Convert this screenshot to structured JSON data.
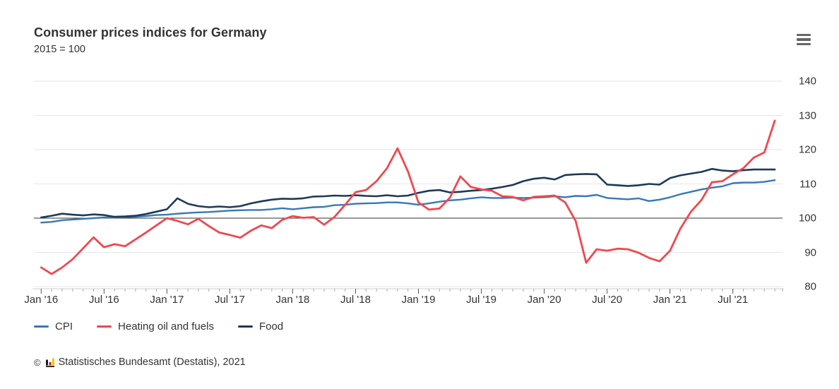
{
  "header": {
    "title": "Consumer prices indices for Germany",
    "subtitle": "2015 = 100"
  },
  "menu": {
    "tooltip": "Chart context menu"
  },
  "footer": {
    "copyright": "©",
    "credit": "Statistisches Bundesamt (Destatis), 2021"
  },
  "chart_data": {
    "type": "line",
    "title": "Consumer prices indices for Germany",
    "subtitle": "2015 = 100",
    "grid": "horizontal",
    "legend_position": "bottom-left",
    "baseline": 100,
    "ylim": [
      80,
      140
    ],
    "y_ticks": [
      80,
      90,
      100,
      110,
      120,
      130,
      140
    ],
    "x_tick_labels": [
      "Jan '16",
      "Jul '16",
      "Jan '17",
      "Jul '17",
      "Jan '18",
      "Jul '18",
      "Jan '19",
      "Jul '19",
      "Jan '20",
      "Jul '20",
      "Jan '21",
      "Jul '21"
    ],
    "x_tick_month_indices": [
      0,
      6,
      12,
      18,
      24,
      30,
      36,
      42,
      48,
      54,
      60,
      66
    ],
    "x": [
      "Jan 2016",
      "Feb 2016",
      "Mar 2016",
      "Apr 2016",
      "May 2016",
      "Jun 2016",
      "Jul 2016",
      "Aug 2016",
      "Sep 2016",
      "Oct 2016",
      "Nov 2016",
      "Dec 2016",
      "Jan 2017",
      "Feb 2017",
      "Mar 2017",
      "Apr 2017",
      "May 2017",
      "Jun 2017",
      "Jul 2017",
      "Aug 2017",
      "Sep 2017",
      "Oct 2017",
      "Nov 2017",
      "Dec 2017",
      "Jan 2018",
      "Feb 2018",
      "Mar 2018",
      "Apr 2018",
      "May 2018",
      "Jun 2018",
      "Jul 2018",
      "Aug 2018",
      "Sep 2018",
      "Oct 2018",
      "Nov 2018",
      "Dec 2018",
      "Jan 2019",
      "Feb 2019",
      "Mar 2019",
      "Apr 2019",
      "May 2019",
      "Jun 2019",
      "Jul 2019",
      "Aug 2019",
      "Sep 2019",
      "Oct 2019",
      "Nov 2019",
      "Dec 2019",
      "Jan 2020",
      "Feb 2020",
      "Mar 2020",
      "Apr 2020",
      "May 2020",
      "Jun 2020",
      "Jul 2020",
      "Aug 2020",
      "Sep 2020",
      "Oct 2020",
      "Nov 2020",
      "Dec 2020",
      "Jan 2021",
      "Feb 2021",
      "Mar 2021",
      "Apr 2021",
      "May 2021",
      "Jun 2021",
      "Jul 2021",
      "Aug 2021",
      "Sep 2021",
      "Oct 2021",
      "Nov 2021"
    ],
    "series": [
      {
        "name": "CPI",
        "color": "#3679b5",
        "values": [
          98.7,
          98.9,
          99.4,
          99.6,
          99.8,
          100.0,
          100.2,
          100.2,
          100.3,
          100.4,
          100.6,
          100.9,
          101.0,
          101.3,
          101.5,
          101.7,
          101.8,
          102.0,
          102.2,
          102.3,
          102.4,
          102.4,
          102.6,
          102.9,
          102.6,
          102.9,
          103.2,
          103.3,
          103.8,
          103.9,
          104.2,
          104.3,
          104.4,
          104.6,
          104.6,
          104.3,
          103.9,
          104.3,
          104.8,
          105.2,
          105.4,
          105.8,
          106.1,
          105.9,
          105.9,
          106.0,
          105.9,
          106.0,
          106.1,
          106.4,
          106.1,
          106.5,
          106.4,
          106.8,
          105.9,
          105.7,
          105.5,
          105.8,
          105.0,
          105.4,
          106.1,
          107.0,
          107.7,
          108.4,
          108.9,
          109.3,
          110.2,
          110.4,
          110.4,
          110.6,
          111.1
        ]
      },
      {
        "name": "Heating oil and fuels",
        "color": "#f0484f",
        "values": [
          85.6,
          83.7,
          85.6,
          88.0,
          91.2,
          94.4,
          91.5,
          92.4,
          91.8,
          93.8,
          95.8,
          97.9,
          100.0,
          99.2,
          98.2,
          99.8,
          97.7,
          95.8,
          95.1,
          94.3,
          96.3,
          97.9,
          97.1,
          99.5,
          100.6,
          100.1,
          100.3,
          98.1,
          100.4,
          103.9,
          107.6,
          108.2,
          110.8,
          114.6,
          120.4,
          113.6,
          104.6,
          102.5,
          102.8,
          106.0,
          112.2,
          109.1,
          108.4,
          108.0,
          106.4,
          106.2,
          105.2,
          106.2,
          106.4,
          106.6,
          104.6,
          99.2,
          87.0,
          90.9,
          90.5,
          91.1,
          90.9,
          89.9,
          88.4,
          87.4,
          90.5,
          97.0,
          101.9,
          105.3,
          110.5,
          110.8,
          112.8,
          114.6,
          117.7,
          119.2,
          128.5
        ]
      },
      {
        "name": "Food",
        "color": "#1d3a57",
        "values": [
          100.2,
          100.7,
          101.3,
          101.0,
          100.8,
          101.1,
          100.9,
          100.4,
          100.5,
          100.7,
          101.2,
          101.9,
          102.6,
          105.8,
          104.2,
          103.5,
          103.2,
          103.4,
          103.2,
          103.5,
          104.3,
          104.9,
          105.4,
          105.7,
          105.6,
          105.8,
          106.3,
          106.4,
          106.6,
          106.5,
          106.7,
          106.5,
          106.4,
          106.7,
          106.4,
          106.6,
          107.4,
          108.0,
          108.2,
          107.5,
          107.7,
          108.0,
          108.2,
          108.6,
          109.1,
          109.7,
          110.8,
          111.5,
          111.8,
          111.3,
          112.6,
          112.8,
          112.9,
          112.8,
          109.8,
          109.6,
          109.4,
          109.6,
          110.0,
          109.8,
          111.7,
          112.5,
          113.0,
          113.5,
          114.4,
          113.9,
          113.7,
          114.0,
          114.2,
          114.2,
          114.2
        ]
      }
    ],
    "colors": {
      "grid": "#e6e6e6",
      "baseline": "#333333",
      "axis_line": "#cccccc",
      "minor_tick": "#aaaaaa",
      "major_tick": "#555555",
      "text": "#333333"
    },
    "logo_colors": {
      "bar1": "#1a1a1a",
      "bar2": "#cc2222",
      "bar3": "#f5c400",
      "base": "#1a1a1a"
    }
  }
}
